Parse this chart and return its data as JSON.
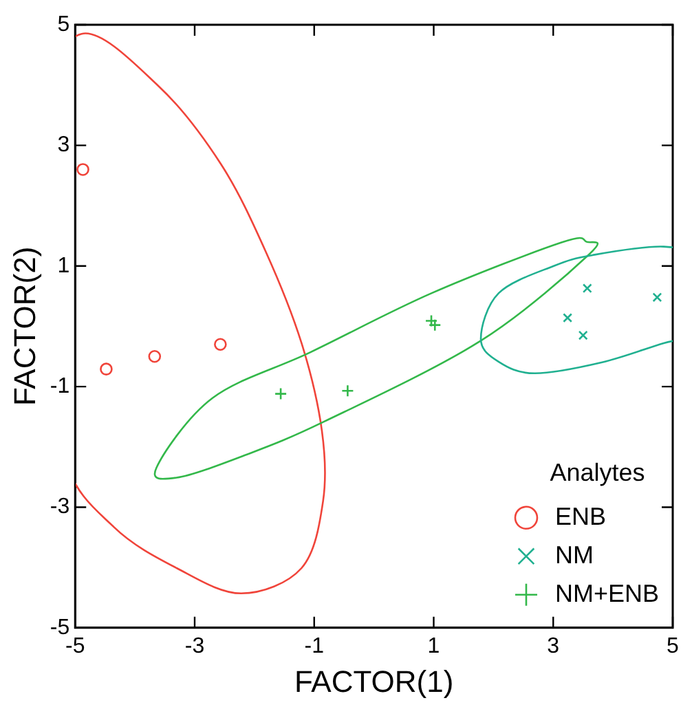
{
  "chart_data": {
    "type": "scatter",
    "xlabel": "FACTOR(1)",
    "ylabel": "FACTOR(2)",
    "legend_title": "Analytes",
    "legend": "bottom right",
    "grid": false,
    "xlim": [
      -5,
      5
    ],
    "ylim": [
      -5,
      5
    ],
    "xticks": [
      -5,
      -3,
      -1,
      1,
      3,
      5
    ],
    "yticks": [
      -5,
      -3,
      -1,
      1,
      3,
      5
    ],
    "series": [
      {
        "name": "ENB",
        "color": "#f0443a",
        "marker": "circle",
        "x": [
          -4.87,
          -4.48,
          -3.67,
          -2.57
        ],
        "values": [
          2.6,
          -0.71,
          -0.5,
          -0.3
        ]
      },
      {
        "name": "NM",
        "color": "#20b090",
        "marker": "cross",
        "x": [
          3.57,
          3.24,
          3.5,
          4.74
        ],
        "values": [
          0.63,
          0.14,
          -0.15,
          0.48
        ]
      },
      {
        "name": "NM+ENB",
        "color": "#33b84a",
        "marker": "plus",
        "x": [
          -1.56,
          -0.44,
          0.96,
          1.02
        ],
        "values": [
          -1.12,
          -1.07,
          0.09,
          0.02
        ]
      }
    ]
  }
}
